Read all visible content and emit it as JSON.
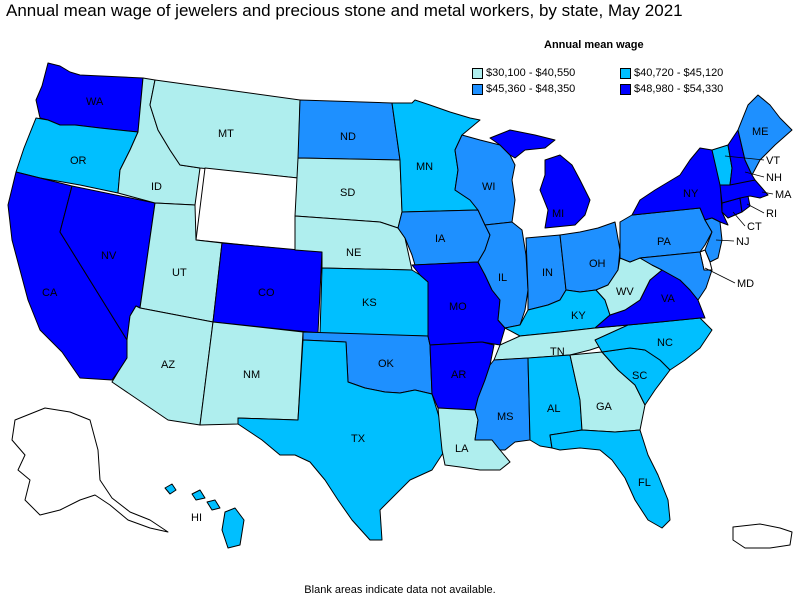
{
  "title": "Annual mean wage of jewelers and precious stone and metal workers, by state, May 2021",
  "legend": {
    "title": "Annual mean wage",
    "items": [
      {
        "label": "$30,100 - $40,550",
        "color": "#afeeee"
      },
      {
        "label": "$40,720 - $45,120",
        "color": "#00bfff"
      },
      {
        "label": "$45,360 - $48,350",
        "color": "#1e90ff"
      },
      {
        "label": "$48,980 - $54,330",
        "color": "#0000ff"
      }
    ]
  },
  "footnote": "Blank areas indicate data not available.",
  "states": [
    {
      "abbr": "WA",
      "tier": 3
    },
    {
      "abbr": "OR",
      "tier": 1
    },
    {
      "abbr": "CA",
      "tier": 3
    },
    {
      "abbr": "NV",
      "tier": 3
    },
    {
      "abbr": "ID",
      "tier": 0
    },
    {
      "abbr": "MT",
      "tier": 0
    },
    {
      "abbr": "WY",
      "tier": -1
    },
    {
      "abbr": "UT",
      "tier": 0
    },
    {
      "abbr": "AZ",
      "tier": 0
    },
    {
      "abbr": "CO",
      "tier": 3
    },
    {
      "abbr": "NM",
      "tier": 0
    },
    {
      "abbr": "ND",
      "tier": 2
    },
    {
      "abbr": "SD",
      "tier": 0
    },
    {
      "abbr": "NE",
      "tier": 0
    },
    {
      "abbr": "KS",
      "tier": 1
    },
    {
      "abbr": "OK",
      "tier": 2
    },
    {
      "abbr": "TX",
      "tier": 1
    },
    {
      "abbr": "MN",
      "tier": 1
    },
    {
      "abbr": "IA",
      "tier": 2
    },
    {
      "abbr": "MO",
      "tier": 3
    },
    {
      "abbr": "AR",
      "tier": 3
    },
    {
      "abbr": "LA",
      "tier": 0
    },
    {
      "abbr": "WI",
      "tier": 2
    },
    {
      "abbr": "IL",
      "tier": 2
    },
    {
      "abbr": "MI",
      "tier": 3
    },
    {
      "abbr": "IN",
      "tier": 2
    },
    {
      "abbr": "OH",
      "tier": 2
    },
    {
      "abbr": "KY",
      "tier": 1
    },
    {
      "abbr": "TN",
      "tier": 0
    },
    {
      "abbr": "MS",
      "tier": 2
    },
    {
      "abbr": "AL",
      "tier": 1
    },
    {
      "abbr": "GA",
      "tier": 0
    },
    {
      "abbr": "FL",
      "tier": 1
    },
    {
      "abbr": "SC",
      "tier": 1
    },
    {
      "abbr": "NC",
      "tier": 1
    },
    {
      "abbr": "VA",
      "tier": 3
    },
    {
      "abbr": "WV",
      "tier": 0
    },
    {
      "abbr": "PA",
      "tier": 2
    },
    {
      "abbr": "NY",
      "tier": 3
    },
    {
      "abbr": "VT",
      "tier": 1
    },
    {
      "abbr": "NH",
      "tier": 3
    },
    {
      "abbr": "ME",
      "tier": 2
    },
    {
      "abbr": "MA",
      "tier": 3
    },
    {
      "abbr": "RI",
      "tier": 3
    },
    {
      "abbr": "CT",
      "tier": 3
    },
    {
      "abbr": "NJ",
      "tier": 2
    },
    {
      "abbr": "MD",
      "tier": 2
    },
    {
      "abbr": "DE",
      "tier": -1
    },
    {
      "abbr": "HI",
      "tier": 1
    },
    {
      "abbr": "AK",
      "tier": -1
    },
    {
      "abbr": "PR",
      "tier": -1
    }
  ]
}
